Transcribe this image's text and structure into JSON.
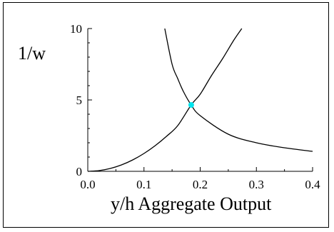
{
  "chart_data": {
    "type": "line",
    "title": "",
    "xlabel": "y/h Aggregate Output",
    "ylabel": "1/w",
    "xlim": [
      0.0,
      0.4
    ],
    "ylim": [
      0,
      10
    ],
    "x_ticks": [
      0.0,
      0.1,
      0.2,
      0.3,
      0.4
    ],
    "x_tick_labels": [
      "0.0",
      "0.1",
      "0.2",
      "0.3",
      "0.4"
    ],
    "y_ticks": [
      0,
      5,
      10
    ],
    "y_tick_labels": [
      "0",
      "5",
      "10"
    ],
    "grid": false,
    "legend": "none",
    "series": [
      {
        "x": [
          0.0,
          0.02,
          0.04,
          0.06,
          0.08,
          0.1,
          0.12,
          0.14,
          0.16,
          0.184,
          0.2,
          0.22,
          0.24,
          0.26,
          0.274
        ],
        "y": [
          0.0,
          0.05,
          0.2,
          0.45,
          0.8,
          1.25,
          1.8,
          2.45,
          3.2,
          4.65,
          5.4,
          6.7,
          7.9,
          9.2,
          10.0
        ]
      },
      {
        "x": [
          0.137,
          0.15,
          0.16,
          0.17,
          0.184,
          0.2,
          0.25,
          0.3,
          0.35,
          0.4
        ],
        "y": [
          10.0,
          7.5,
          6.5,
          5.6,
          4.65,
          3.9,
          2.6,
          2.0,
          1.65,
          1.4
        ]
      }
    ],
    "markers": [
      {
        "x": 0.184,
        "y": 4.65,
        "color": "#00e5ee"
      }
    ],
    "line_color": "#000000"
  }
}
